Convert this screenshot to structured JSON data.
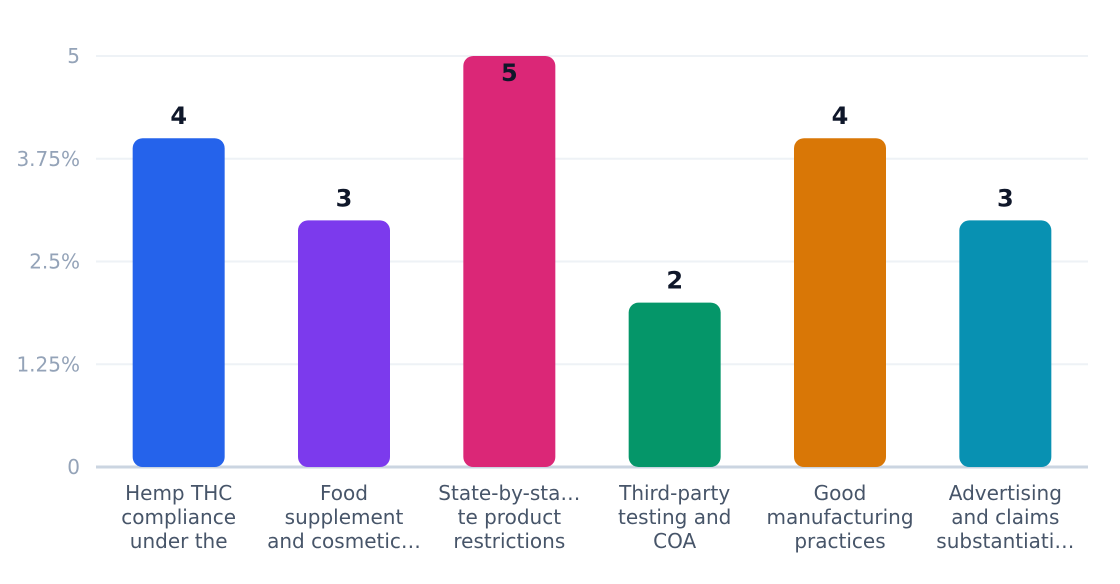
{
  "chart_data": {
    "type": "bar",
    "categories": [
      [
        "Hemp THC",
        "compliance",
        "under the"
      ],
      [
        "Food",
        "supplement",
        "and cosmetic…"
      ],
      [
        "State-by-sta…",
        "te product",
        "restrictions"
      ],
      [
        "Third-party",
        "testing and",
        "COA"
      ],
      [
        "Good",
        "manufacturing",
        "practices"
      ],
      [
        "Advertising",
        "and claims",
        "substantiati…"
      ]
    ],
    "values": [
      4,
      3,
      5,
      2,
      4,
      3
    ],
    "colors": [
      "#2563eb",
      "#7c3aed",
      "#db2777",
      "#059669",
      "#d97706",
      "#0891b2"
    ],
    "y_ticks": [
      0,
      1.25,
      2.5,
      3.75,
      5
    ],
    "y_tick_labels": [
      "0",
      "1.25%",
      "2.5%",
      "3.75%",
      "5"
    ],
    "ylim": [
      0,
      5
    ],
    "grid": true,
    "title": "",
    "xlabel": "",
    "ylabel": ""
  }
}
